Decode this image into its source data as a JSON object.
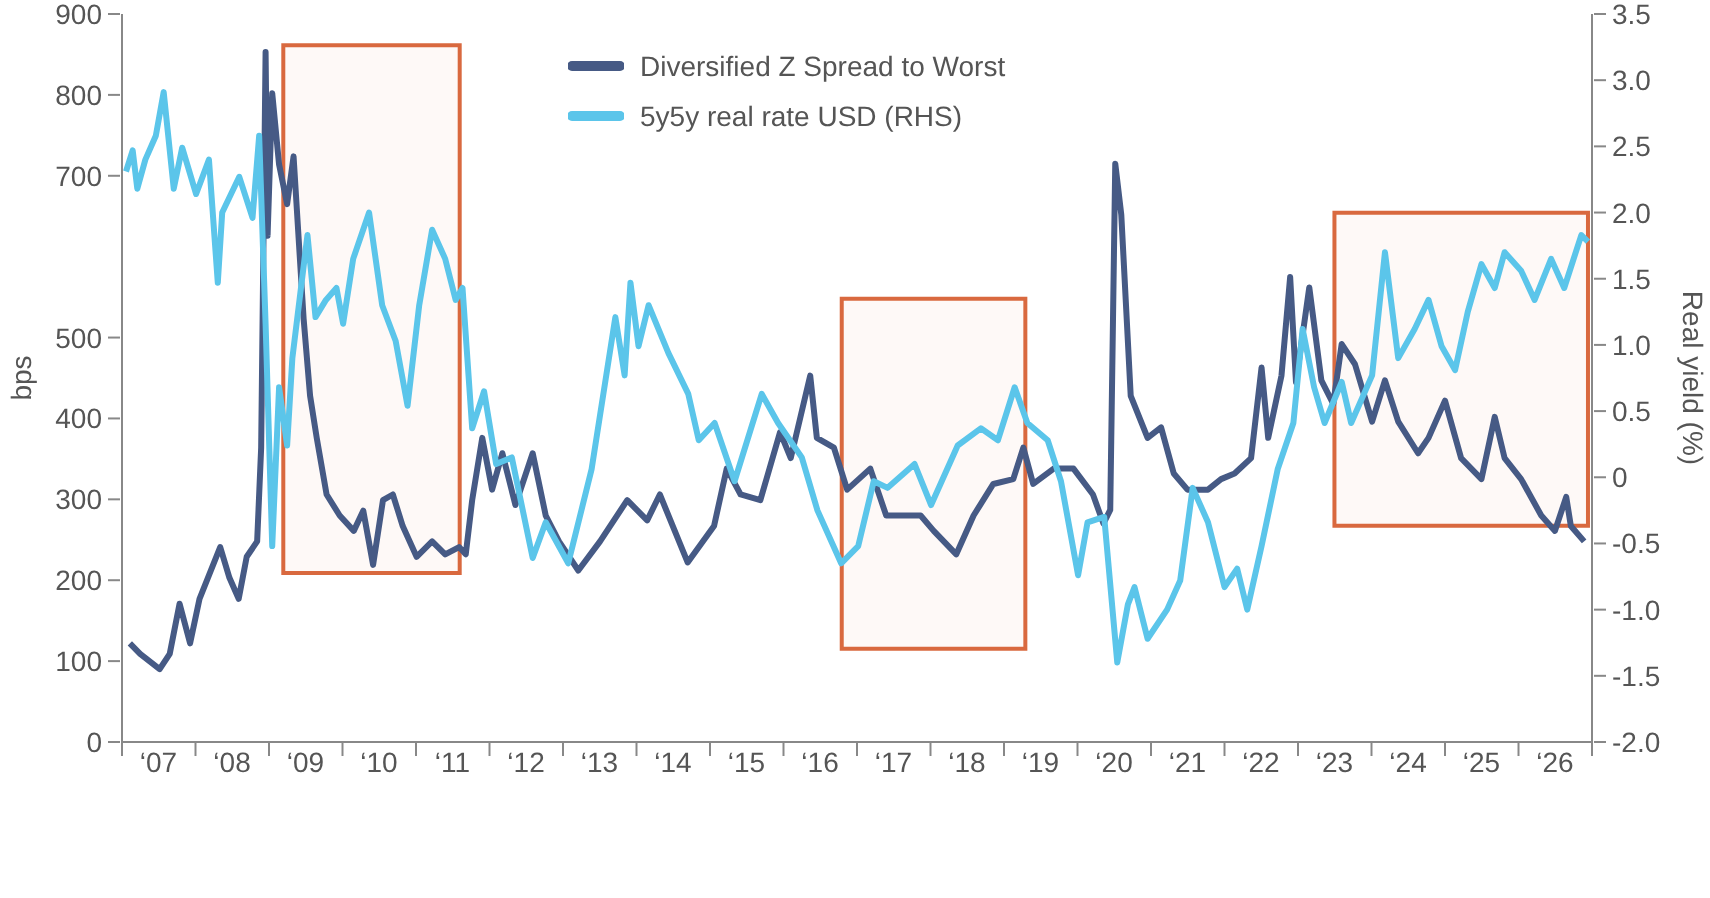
{
  "chart_data": {
    "type": "line",
    "ylabel": "bps",
    "y2label": "Real yield (%)",
    "legend": "top",
    "grid": false,
    "marker": "none",
    "line_style": "solid",
    "xlim": [
      "2007",
      "2027"
    ],
    "xticks": [
      {
        "value": "2007",
        "label": null
      },
      {
        "value": "2007-07",
        "label": "‘07"
      },
      {
        "value": "2008",
        "label": null
      },
      {
        "value": "2008-07",
        "label": "‘08"
      },
      {
        "value": "2009",
        "label": null
      },
      {
        "value": "2009-07",
        "label": "‘09"
      },
      {
        "value": "2010",
        "label": null
      },
      {
        "value": "2010-07",
        "label": "‘10"
      },
      {
        "value": "2011",
        "label": null
      },
      {
        "value": "2011-07",
        "label": "‘11"
      },
      {
        "value": "2012",
        "label": null
      },
      {
        "value": "2012-07",
        "label": "‘12"
      },
      {
        "value": "2013",
        "label": null
      },
      {
        "value": "2013-07",
        "label": "‘13"
      },
      {
        "value": "2014",
        "label": null
      },
      {
        "value": "2014-07",
        "label": "‘14"
      },
      {
        "value": "2015",
        "label": null
      },
      {
        "value": "2015-07",
        "label": "‘15"
      },
      {
        "value": "2016",
        "label": null
      },
      {
        "value": "2016-07",
        "label": "‘16"
      },
      {
        "value": "2017",
        "label": null
      },
      {
        "value": "2017-07",
        "label": "‘17"
      },
      {
        "value": "2018",
        "label": null
      },
      {
        "value": "2018-07",
        "label": "‘18"
      },
      {
        "value": "2019",
        "label": null
      },
      {
        "value": "2019-07",
        "label": "‘19"
      },
      {
        "value": "2020",
        "label": null
      },
      {
        "value": "2020-07",
        "label": "‘20"
      },
      {
        "value": "2021",
        "label": null
      },
      {
        "value": "2021-07",
        "label": "‘21"
      },
      {
        "value": "2022",
        "label": null
      },
      {
        "value": "2022-07",
        "label": "‘22"
      },
      {
        "value": "2023",
        "label": null
      },
      {
        "value": "2023-07",
        "label": "‘23"
      },
      {
        "value": "2024",
        "label": null
      },
      {
        "value": "2024-07",
        "label": "‘24"
      },
      {
        "value": "2025",
        "label": null
      },
      {
        "value": "2025-07",
        "label": "‘25"
      },
      {
        "value": "2026",
        "label": null
      },
      {
        "value": "2026-07",
        "label": "‘26"
      },
      {
        "value": "2027",
        "label": null
      }
    ],
    "ylim": [
      0,
      900
    ],
    "yticks": [
      0,
      100,
      200,
      300,
      400,
      500,
      700,
      800,
      900
    ],
    "y2lim": [
      -2.0,
      3.5
    ],
    "y2ticks": [
      {
        "value": -2,
        "label": "-2.0"
      },
      {
        "value": -1.5,
        "label": "-1.5"
      },
      {
        "value": -1,
        "label": "-1.0"
      },
      {
        "value": -0.5,
        "label": "-0.5"
      },
      0,
      {
        "value": 0.5,
        "label": "0.5"
      },
      {
        "value": 1,
        "label": "1.0"
      },
      {
        "value": 1.5,
        "label": "1.5"
      },
      {
        "value": 2,
        "label": "2.0"
      },
      {
        "value": 2.5,
        "label": "2.5"
      },
      {
        "value": 3,
        "label": "3.0"
      },
      {
        "value": 3.5,
        "label": "3.5"
      }
    ],
    "bands": [
      {
        "axis": "x",
        "from": "2009-03-13",
        "to": "2011-08-06",
        "color": "#d9693f"
      },
      {
        "axis": "x",
        "from": "2016-10-17",
        "to": "2019-04-17",
        "color": "#d9693f"
      },
      {
        "axis": "x",
        "from": "2023-07-01",
        "to": "2026-12-12",
        "color": "#d9693f"
      }
    ],
    "series": [
      {
        "name": "Diversified Z Spread to Worst",
        "color": "#465a85",
        "x": [
          "2007-02-09",
          "2007-04-01",
          "2007-07-07",
          "2007-08-26",
          "2007-10-14",
          "2007-12-05",
          "2008-01-21",
          "2008-05-03",
          "2008-06-18",
          "2008-08-03",
          "2008-09-12",
          "2008-11-03",
          "2008-11-23",
          "2008-12-15",
          "2008-12-25",
          "2009-01-17",
          "2009-02-20",
          "2009-04-01",
          "2009-05-03",
          "2009-06-22",
          "2009-07-24",
          "2009-08-26",
          "2009-10-14",
          "2009-12-18",
          "2010-02-26",
          "2010-04-14",
          "2010-06-02",
          "2010-07-21",
          "2010-09-08",
          "2010-10-27",
          "2011-01-04",
          "2011-03-22",
          "2011-05-26",
          "2011-08-03",
          "2011-09-05",
          "2011-10-07",
          "2011-11-26",
          "2012-01-14",
          "2012-03-05",
          "2012-05-09",
          "2012-08-03",
          "2012-10-07",
          "2012-12-12",
          "2013-03-18",
          "2013-07-04",
          "2013-11-16",
          "2014-02-23",
          "2014-04-27",
          "2014-09-12",
          "2015-01-21",
          "2015-03-25",
          "2015-06-02",
          "2015-09-08",
          "2015-12-15",
          "2016-02-06",
          "2016-05-13",
          "2016-06-15",
          "2016-09-08",
          "2016-11-13",
          "2017-03-08",
          "2017-05-26",
          "2017-11-13",
          "2018-01-17",
          "2018-05-09",
          "2018-08-03",
          "2018-11-09",
          "2019-02-16",
          "2019-04-07",
          "2019-05-26",
          "2019-09-05",
          "2019-12-12",
          "2020-03-18",
          "2020-05-09",
          "2020-06-12",
          "2020-07-07",
          "2020-08-06",
          "2020-09-22",
          "2020-12-15",
          "2021-02-20",
          "2021-04-24",
          "2021-07-01",
          "2021-10-11",
          "2021-12-15",
          "2022-02-20",
          "2022-05-13",
          "2022-07-04",
          "2022-08-06",
          "2022-10-11",
          "2022-11-23",
          "2022-12-22",
          "2023-02-26",
          "2023-04-27",
          "2023-06-25",
          "2023-08-06",
          "2023-10-11",
          "2024-01-04",
          "2024-03-08",
          "2024-05-13",
          "2024-08-20",
          "2024-10-11",
          "2025-01-01",
          "2025-03-22",
          "2025-07-01",
          "2025-09-05",
          "2025-10-24",
          "2026-01-14",
          "2026-04-24",
          "2026-07-01",
          "2026-08-26",
          "2026-09-18",
          "2026-11-23"
        ],
        "values": [
          122,
          109,
          90,
          109,
          171,
          122,
          177,
          241,
          203,
          177,
          229,
          248,
          364,
          853,
          626,
          802,
          714,
          665,
          724,
          523,
          428,
          376,
          306,
          280,
          261,
          286,
          219,
          299,
          306,
          267,
          229,
          248,
          232,
          241,
          232,
          299,
          376,
          312,
          357,
          293,
          357,
          280,
          248,
          212,
          248,
          299,
          274,
          306,
          222,
          267,
          338,
          306,
          299,
          383,
          351,
          453,
          376,
          364,
          312,
          338,
          280,
          280,
          261,
          232,
          280,
          319,
          325,
          364,
          319,
          338,
          338,
          306,
          270,
          287,
          715,
          652,
          428,
          376,
          389,
          332,
          312,
          312,
          325,
          332,
          351,
          463,
          376,
          453,
          575,
          445,
          562,
          447,
          418,
          492,
          467,
          396,
          447,
          396,
          357,
          376,
          422,
          351,
          325,
          402,
          351,
          325,
          280,
          261,
          303,
          267,
          248
        ]
      },
      {
        "name": "5y5y real rate USD (RHS)",
        "color": "#5bc5ea",
        "axis": "y2",
        "x": [
          "2007-01-21",
          "2007-02-23",
          "2007-03-18",
          "2007-04-27",
          "2007-06-18",
          "2007-07-27",
          "2007-09-15",
          "2007-10-27",
          "2008-01-04",
          "2008-03-08",
          "2008-04-21",
          "2008-05-13",
          "2008-08-06",
          "2008-10-11",
          "2008-11-13",
          "2008-12-15",
          "2009-01-17",
          "2009-02-20",
          "2009-04-01",
          "2009-04-27",
          "2009-07-11",
          "2009-08-20",
          "2009-10-11",
          "2009-12-02",
          "2010-01-04",
          "2010-02-23",
          "2010-05-13",
          "2010-07-17",
          "2010-09-22",
          "2010-11-20",
          "2011-01-17",
          "2011-03-22",
          "2011-05-26",
          "2011-07-17",
          "2011-08-20",
          "2011-10-07",
          "2011-12-05",
          "2012-02-03",
          "2012-04-21",
          "2012-08-03",
          "2012-10-07",
          "2013-01-27",
          "2013-05-23",
          "2013-09-18",
          "2013-11-03",
          "2013-12-02",
          "2014-01-11",
          "2014-03-02",
          "2014-06-08",
          "2014-09-15",
          "2014-11-06",
          "2015-01-24",
          "2015-05-03",
          "2015-09-15",
          "2015-12-05",
          "2016-04-01",
          "2016-06-18",
          "2016-10-14",
          "2017-01-07",
          "2017-03-25",
          "2017-06-02",
          "2017-10-14",
          "2018-01-04",
          "2018-05-16",
          "2018-09-08",
          "2018-12-02",
          "2019-02-23",
          "2019-04-27",
          "2019-08-06",
          "2019-10-11",
          "2020-01-04",
          "2020-02-20",
          "2020-05-13",
          "2020-07-17",
          "2020-09-08",
          "2020-10-11",
          "2020-12-15",
          "2021-03-22",
          "2021-05-26",
          "2021-07-27",
          "2021-10-11",
          "2022-01-01",
          "2022-03-05",
          "2022-04-24",
          "2022-07-04",
          "2022-09-22",
          "2022-12-09",
          "2023-01-24",
          "2023-03-22",
          "2023-05-13",
          "2023-08-06",
          "2023-09-22",
          "2024-01-04",
          "2024-03-08",
          "2024-05-13",
          "2024-08-03",
          "2024-10-11",
          "2024-12-15",
          "2025-02-20",
          "2025-04-24",
          "2025-07-01",
          "2025-09-05",
          "2025-10-24",
          "2026-01-14",
          "2026-03-22",
          "2026-06-12",
          "2026-08-16",
          "2026-11-09",
          "2026-12-12"
        ],
        "values": [
          2.31,
          2.47,
          2.18,
          2.4,
          2.58,
          2.91,
          2.18,
          2.49,
          2.14,
          2.4,
          1.47,
          2.0,
          2.27,
          1.96,
          2.58,
          1.16,
          -0.52,
          0.68,
          0.24,
          0.9,
          1.83,
          1.21,
          1.34,
          1.43,
          1.16,
          1.65,
          2.0,
          1.3,
          1.03,
          0.54,
          1.3,
          1.87,
          1.65,
          1.34,
          1.43,
          0.37,
          0.65,
          0.1,
          0.15,
          -0.61,
          -0.34,
          -0.65,
          0.06,
          1.21,
          0.77,
          1.47,
          0.99,
          1.3,
          0.94,
          0.63,
          0.28,
          0.41,
          -0.03,
          0.63,
          0.41,
          0.15,
          -0.25,
          -0.65,
          -0.52,
          -0.03,
          -0.08,
          0.1,
          -0.21,
          0.24,
          0.37,
          0.28,
          0.68,
          0.41,
          0.28,
          -0.03,
          -0.74,
          -0.34,
          -0.3,
          -1.4,
          -0.96,
          -0.83,
          -1.22,
          -1.0,
          -0.78,
          -0.08,
          -0.34,
          -0.83,
          -0.69,
          -1.0,
          -0.52,
          0.06,
          0.41,
          1.12,
          0.68,
          0.41,
          0.72,
          0.41,
          0.77,
          1.7,
          0.9,
          1.12,
          1.34,
          0.99,
          0.81,
          1.25,
          1.61,
          1.43,
          1.7,
          1.56,
          1.34,
          1.65,
          1.43,
          1.83,
          1.78
        ]
      }
    ]
  }
}
